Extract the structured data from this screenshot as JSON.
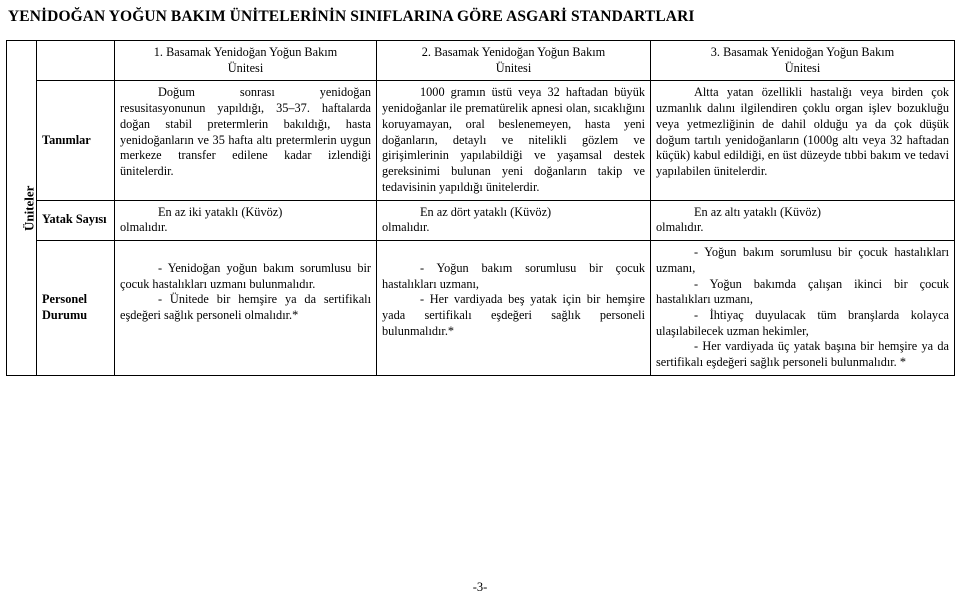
{
  "title": "YENİDOĞAN YOĞUN BAKIM ÜNİTELERİNİN SINIFLARINA GÖRE ASGARİ STANDARTLARI",
  "side_label": "Üniteler",
  "row_labels": {
    "definitions": "Tanımlar",
    "beds": "Yatak Sayısı",
    "staff": "Personel Durumu"
  },
  "columns": {
    "level1": {
      "header_line1": "1. Basamak Yenidoğan Yoğun Bakım",
      "header_line2": "Ünitesi",
      "definitions_p1": "Doğum sonrası yenidoğan resusitasyonunun yapıldığı, 35–37. haftalarda doğan stabil pretermlerin bakıldığı, hasta yenidoğanların ve 35 hafta altı pretermlerin uygun merkeze transfer edilene kadar izlendiği ünitelerdir.",
      "beds_line1": "En az iki yataklı  (Küvöz)",
      "beds_line2": "olmalıdır.",
      "staff_p1": "- Yenidoğan yoğun bakım sorumlusu bir çocuk hastalıkları uzmanı bulunmalıdır.",
      "staff_p2": "- Ünitede bir hemşire ya da sertifikalı eşdeğeri sağlık personeli olmalıdır.*"
    },
    "level2": {
      "header_line1": "2. Basamak Yenidoğan Yoğun Bakım",
      "header_line2": "Ünitesi",
      "definitions_p1": "1000 gramın üstü veya 32 haftadan büyük yenidoğanlar ile prematürelik apnesi olan, sıcaklığını koruyamayan, oral beslenemeyen, hasta yeni doğanların, detaylı ve nitelikli gözlem ve girişimlerinin yapılabildiği ve yaşamsal destek gereksinimi bulunan yeni doğanların takip ve tedavisinin yapıldığı ünitelerdir.",
      "beds_line1": "En az dört yataklı (Küvöz)",
      "beds_line2": "olmalıdır.",
      "staff_p1": "- Yoğun bakım sorumlusu bir çocuk hastalıkları uzmanı,",
      "staff_p2": "- Her vardiyada beş yatak için bir hemşire yada sertifikalı eşdeğeri sağlık personeli bulunmalıdır.*"
    },
    "level3": {
      "header_line1": "3. Basamak Yenidoğan Yoğun Bakım",
      "header_line2": "Ünitesi",
      "definitions_p1": "Altta yatan özellikli hastalığı veya birden çok uzmanlık dalını ilgilendiren çoklu organ işlev bozukluğu veya yetmezliğinin de dahil olduğu ya da çok düşük doğum tartılı yenidoğanların (1000g altı veya 32 haftadan küçük) kabul edildiği, en üst düzeyde tıbbi bakım ve tedavi yapılabilen ünitelerdir.",
      "beds_line1": "En az altı yataklı (Küvöz)",
      "beds_line2": "olmalıdır.",
      "staff_p1": "- Yoğun bakım sorumlusu bir çocuk hastalıkları uzmanı,",
      "staff_p2": "- Yoğun bakımda çalışan ikinci bir çocuk hastalıkları uzmanı,",
      "staff_p3": "-  İhtiyaç  duyulacak  tüm branşlarda kolayca ulaşılabilecek uzman hekimler,",
      "staff_p4": "- Her vardiyada üç yatak başına bir hemşire ya da sertifikalı eşdeğeri sağlık personeli bulunmalıdır. *"
    }
  },
  "page_number": "-3-"
}
